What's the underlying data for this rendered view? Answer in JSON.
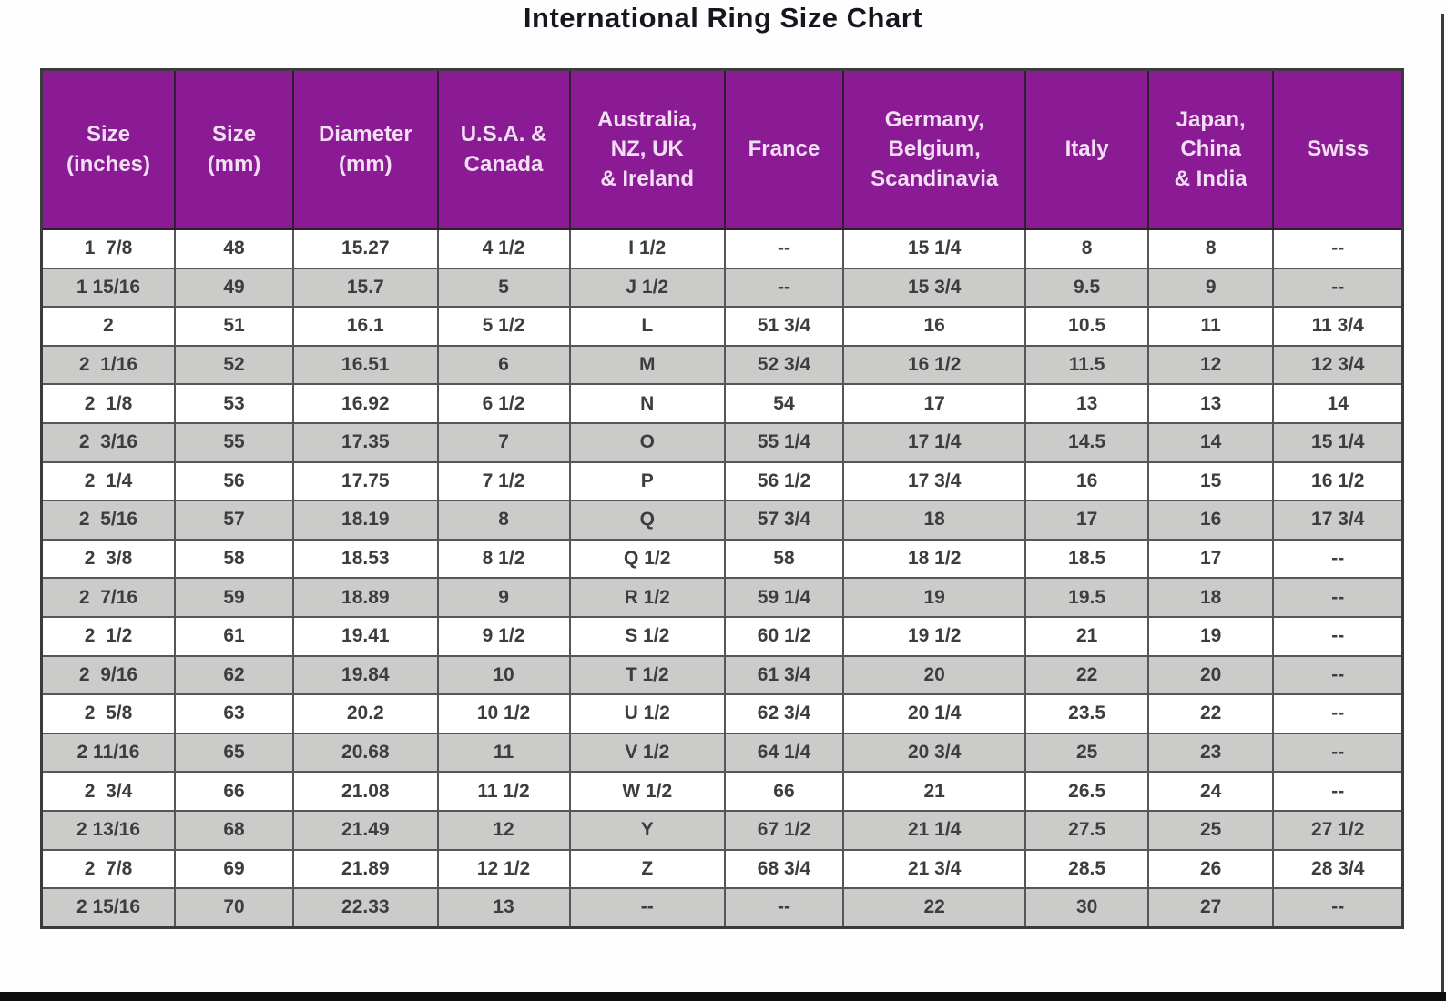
{
  "title": "International Ring Size Chart",
  "colors": {
    "header_bg": "#8a1b94",
    "header_text": "#f2dff4",
    "stripe": "#cbcbc9",
    "grid": "#55555a"
  },
  "chart_data": {
    "type": "table",
    "title": "International Ring Size Chart",
    "columns": [
      "Size\n(inches)",
      "Size\n(mm)",
      "Diameter\n(mm)",
      "U.S.A. &\nCanada",
      "Australia,\nNZ, UK\n& Ireland",
      "France",
      "Germany,\nBelgium,\nScandinavia",
      "Italy",
      "Japan,\nChina\n& India",
      "Swiss"
    ],
    "rows": [
      [
        "1  7/8",
        "48",
        "15.27",
        "4 1/2",
        "I 1/2",
        "--",
        "15 1/4",
        "8",
        "8",
        "--"
      ],
      [
        "1 15/16",
        "49",
        "15.7",
        "5",
        "J 1/2",
        "--",
        "15 3/4",
        "9.5",
        "9",
        "--"
      ],
      [
        "2",
        "51",
        "16.1",
        "5 1/2",
        "L",
        "51 3/4",
        "16",
        "10.5",
        "11",
        "11 3/4"
      ],
      [
        "2  1/16",
        "52",
        "16.51",
        "6",
        "M",
        "52 3/4",
        "16 1/2",
        "11.5",
        "12",
        "12 3/4"
      ],
      [
        "2  1/8",
        "53",
        "16.92",
        "6 1/2",
        "N",
        "54",
        "17",
        "13",
        "13",
        "14"
      ],
      [
        "2  3/16",
        "55",
        "17.35",
        "7",
        "O",
        "55 1/4",
        "17 1/4",
        "14.5",
        "14",
        "15 1/4"
      ],
      [
        "2  1/4",
        "56",
        "17.75",
        "7 1/2",
        "P",
        "56 1/2",
        "17 3/4",
        "16",
        "15",
        "16 1/2"
      ],
      [
        "2  5/16",
        "57",
        "18.19",
        "8",
        "Q",
        "57 3/4",
        "18",
        "17",
        "16",
        "17 3/4"
      ],
      [
        "2  3/8",
        "58",
        "18.53",
        "8 1/2",
        "Q 1/2",
        "58",
        "18 1/2",
        "18.5",
        "17",
        "--"
      ],
      [
        "2  7/16",
        "59",
        "18.89",
        "9",
        "R 1/2",
        "59 1/4",
        "19",
        "19.5",
        "18",
        "--"
      ],
      [
        "2  1/2",
        "61",
        "19.41",
        "9 1/2",
        "S 1/2",
        "60 1/2",
        "19 1/2",
        "21",
        "19",
        "--"
      ],
      [
        "2  9/16",
        "62",
        "19.84",
        "10",
        "T 1/2",
        "61 3/4",
        "20",
        "22",
        "20",
        "--"
      ],
      [
        "2  5/8",
        "63",
        "20.2",
        "10 1/2",
        "U 1/2",
        "62 3/4",
        "20 1/4",
        "23.5",
        "22",
        "--"
      ],
      [
        "2 11/16",
        "65",
        "20.68",
        "11",
        "V 1/2",
        "64 1/4",
        "20 3/4",
        "25",
        "23",
        "--"
      ],
      [
        "2  3/4",
        "66",
        "21.08",
        "11 1/2",
        "W 1/2",
        "66",
        "21",
        "26.5",
        "24",
        "--"
      ],
      [
        "2 13/16",
        "68",
        "21.49",
        "12",
        "Y",
        "67 1/2",
        "21 1/4",
        "27.5",
        "25",
        "27 1/2"
      ],
      [
        "2  7/8",
        "69",
        "21.89",
        "12 1/2",
        "Z",
        "68 3/4",
        "21 3/4",
        "28.5",
        "26",
        "28 3/4"
      ],
      [
        "2 15/16",
        "70",
        "22.33",
        "13",
        "--",
        "--",
        "22",
        "30",
        "27",
        "--"
      ]
    ]
  }
}
